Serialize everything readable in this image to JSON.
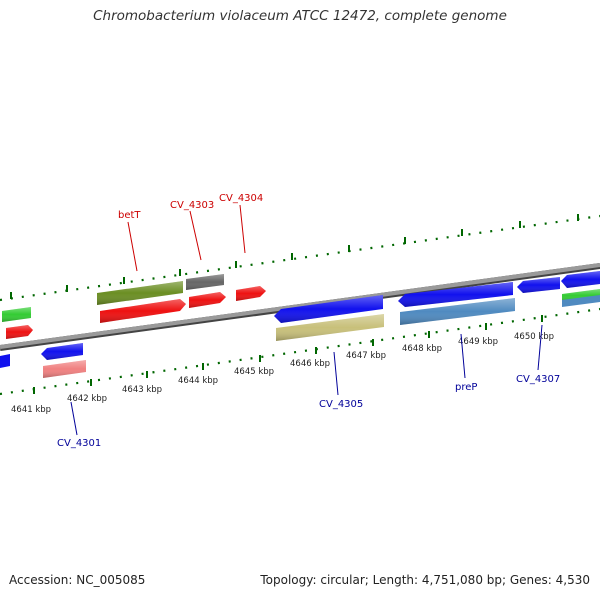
{
  "title": "Chromobacterium violaceum ATCC 12472, complete genome",
  "footer": {
    "accession": "Accession: NC_005085",
    "stats": "Topology: circular; Length: 4,751,080 bp; Genes: 4,530"
  },
  "scale_labels": [
    {
      "id": "4641",
      "text": "4641 kbp"
    },
    {
      "id": "4642",
      "text": "4642 kbp"
    },
    {
      "id": "4643",
      "text": "4643 kbp"
    },
    {
      "id": "4644",
      "text": "4644 kbp"
    },
    {
      "id": "4645",
      "text": "4645 kbp"
    },
    {
      "id": "4646",
      "text": "4646 kbp"
    },
    {
      "id": "4647",
      "text": "4647 kbp"
    },
    {
      "id": "4648",
      "text": "4648 kbp"
    },
    {
      "id": "4649",
      "text": "4649 kbp"
    },
    {
      "id": "4650",
      "text": "4650 kbp"
    }
  ],
  "gene_labels": {
    "betT": "betT",
    "cv4303": "CV_4303",
    "cv4304": "CV_4304",
    "cv4301": "CV_4301",
    "cv4305": "CV_4305",
    "preP": "preP",
    "cv4307": "CV_4307"
  },
  "colors": {
    "backbone": "#8a8a8a",
    "forward_cds": "#ee1111",
    "reverse_cds": "#1111ee",
    "olive": "#6b8e23",
    "gray": "#666666",
    "green": "#33cc33",
    "pink": "#f08080",
    "khaki": "#c8c07a",
    "steelblue": "#4f8ac0",
    "tick": "#006600",
    "label_forward": "#cc0000",
    "label_reverse": "#000099"
  }
}
